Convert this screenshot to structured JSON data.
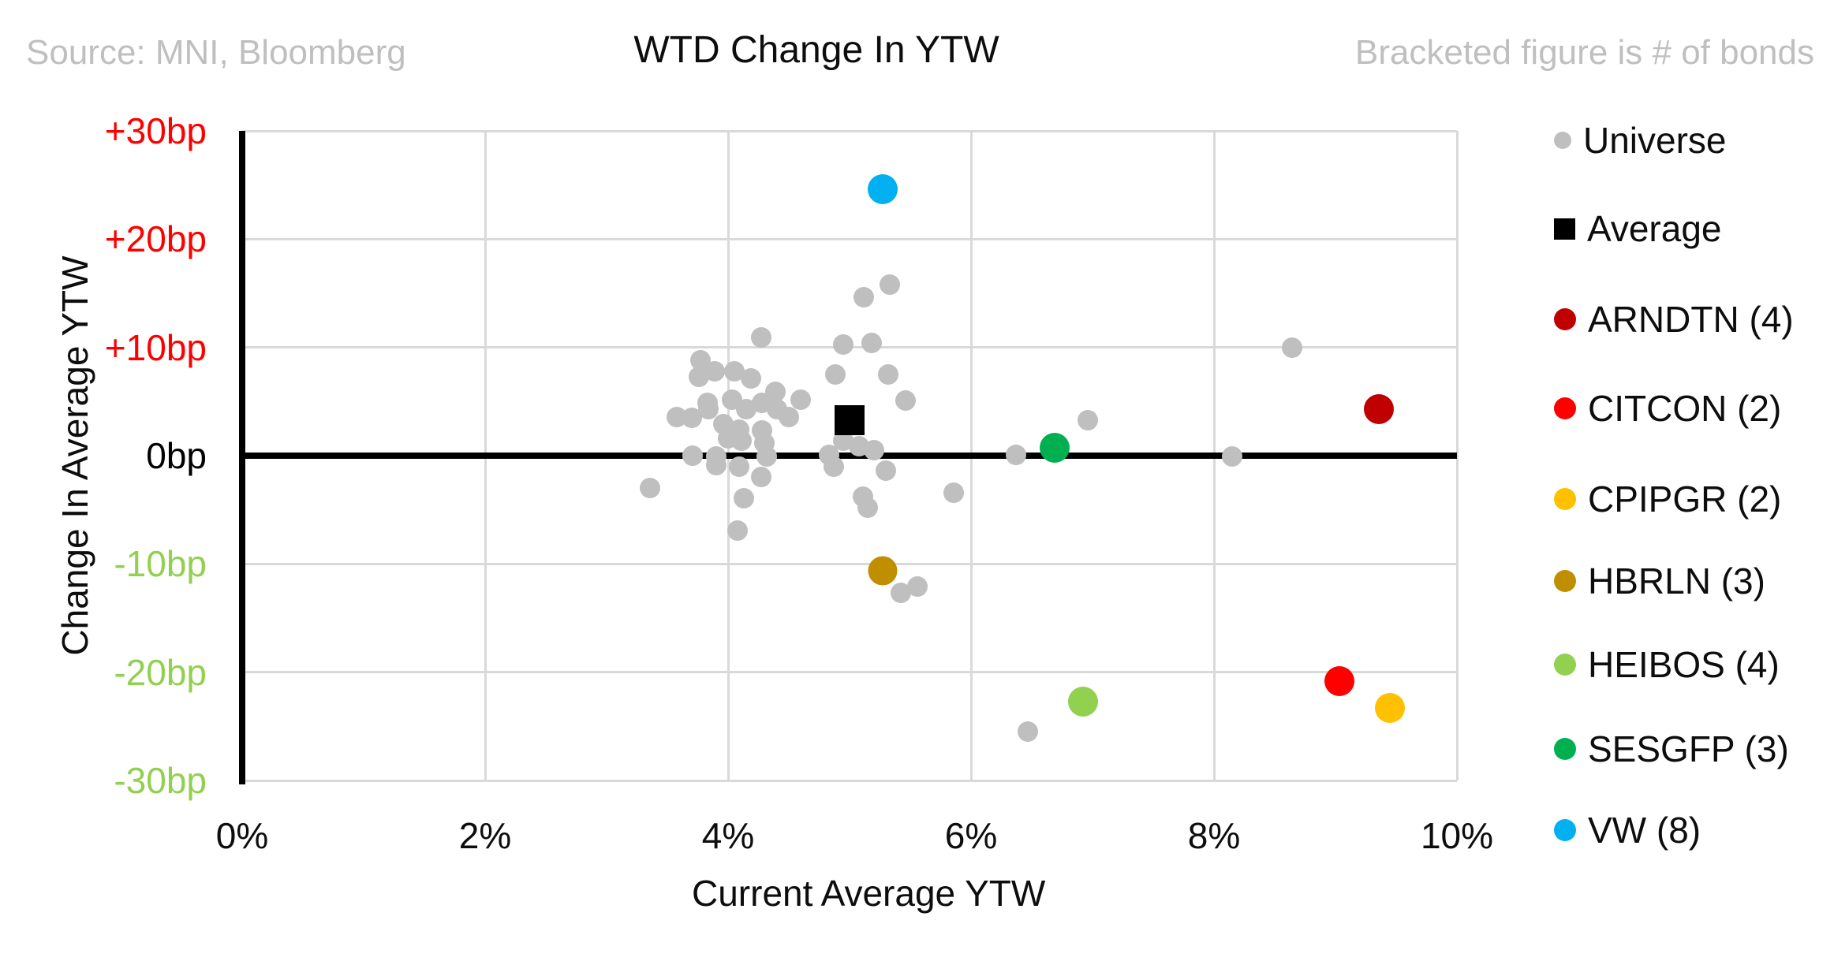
{
  "header": {
    "source": "Source: MNI, Bloomberg",
    "note": "Bracketed figure is # of bonds"
  },
  "chart_data": {
    "type": "scatter",
    "title": "WTD Change In YTW",
    "xlabel": "Current Average YTW",
    "ylabel": "Change In Average YTW",
    "xlim": [
      0,
      10
    ],
    "ylim": [
      -30,
      30
    ],
    "grid": true,
    "legend_position": "right",
    "x_ticks": [
      {
        "label": "0%",
        "value": 0
      },
      {
        "label": "2%",
        "value": 2
      },
      {
        "label": "4%",
        "value": 4
      },
      {
        "label": "6%",
        "value": 6
      },
      {
        "label": "8%",
        "value": 8
      },
      {
        "label": "10%",
        "value": 10
      }
    ],
    "y_ticks": [
      {
        "label": "+30bp",
        "value": 30,
        "color": "#FF0000"
      },
      {
        "label": "+20bp",
        "value": 20,
        "color": "#FF0000"
      },
      {
        "label": "+10bp",
        "value": 10,
        "color": "#FF0000"
      },
      {
        "label": "0bp",
        "value": 0,
        "color": "#000000"
      },
      {
        "label": "-10bp",
        "value": -10,
        "color": "#92D050"
      },
      {
        "label": "-20bp",
        "value": -20,
        "color": "#92D050"
      },
      {
        "label": "-30bp",
        "value": -30,
        "color": "#92D050"
      }
    ],
    "series": [
      {
        "name": "Universe",
        "count": null,
        "marker": "circle",
        "color": "#BFBFBF",
        "point_size": 26,
        "legend_size": 22,
        "points": [
          [
            3.36,
            -3.0
          ],
          [
            3.58,
            3.6
          ],
          [
            3.7,
            3.5
          ],
          [
            3.71,
            0.0
          ],
          [
            3.76,
            7.3
          ],
          [
            3.77,
            8.8
          ],
          [
            3.83,
            4.9
          ],
          [
            3.84,
            4.3
          ],
          [
            3.89,
            7.8
          ],
          [
            3.9,
            -0.1
          ],
          [
            3.9,
            -0.9
          ],
          [
            3.96,
            2.9
          ],
          [
            4.0,
            1.6
          ],
          [
            4.03,
            5.2
          ],
          [
            4.05,
            7.8
          ],
          [
            4.08,
            -6.9
          ],
          [
            4.09,
            2.4
          ],
          [
            4.09,
            -1.0
          ],
          [
            4.11,
            1.4
          ],
          [
            4.13,
            -3.9
          ],
          [
            4.15,
            4.3
          ],
          [
            4.19,
            7.1
          ],
          [
            4.27,
            10.9
          ],
          [
            4.27,
            -2.0
          ],
          [
            4.28,
            4.9
          ],
          [
            4.28,
            2.3
          ],
          [
            4.3,
            1.2
          ],
          [
            4.32,
            -0.1
          ],
          [
            4.39,
            5.9
          ],
          [
            4.4,
            4.3
          ],
          [
            4.5,
            3.6
          ],
          [
            4.6,
            5.2
          ],
          [
            4.83,
            0.1
          ],
          [
            4.87,
            -1.0
          ],
          [
            4.88,
            7.5
          ],
          [
            4.95,
            10.3
          ],
          [
            4.95,
            1.4
          ],
          [
            5.08,
            0.9
          ],
          [
            5.11,
            -3.8
          ],
          [
            5.12,
            14.6
          ],
          [
            5.15,
            -4.8
          ],
          [
            5.2,
            0.5
          ],
          [
            5.18,
            10.4
          ],
          [
            5.3,
            -1.4
          ],
          [
            5.32,
            7.5
          ],
          [
            5.33,
            15.8
          ],
          [
            5.42,
            -12.7
          ],
          [
            5.46,
            5.1
          ],
          [
            5.56,
            -12.1
          ],
          [
            5.86,
            -3.4
          ],
          [
            6.37,
            0.1
          ],
          [
            6.47,
            -25.5
          ],
          [
            6.96,
            3.3
          ],
          [
            8.15,
            -0.1
          ],
          [
            8.64,
            10.0
          ]
        ]
      },
      {
        "name": "Average",
        "count": null,
        "marker": "square",
        "color": "#000000",
        "point_size": 38,
        "legend_size": 27,
        "points": [
          [
            5.0,
            3.3
          ]
        ]
      },
      {
        "name": "ARNDTN",
        "count": 4,
        "marker": "circle",
        "color": "#C00000",
        "point_size": 38,
        "legend_size": 28,
        "points": [
          [
            9.36,
            4.3
          ]
        ]
      },
      {
        "name": "CITCON",
        "count": 2,
        "marker": "circle",
        "color": "#FF0000",
        "point_size": 38,
        "legend_size": 28,
        "points": [
          [
            9.03,
            -20.8
          ]
        ]
      },
      {
        "name": "CPIPGR",
        "count": 2,
        "marker": "circle",
        "color": "#FFC000",
        "point_size": 38,
        "legend_size": 28,
        "points": [
          [
            9.45,
            -23.3
          ]
        ]
      },
      {
        "name": "HBRLN",
        "count": 3,
        "marker": "circle",
        "color": "#BF8F00",
        "point_size": 37,
        "legend_size": 28,
        "points": [
          [
            5.27,
            -10.6
          ]
        ]
      },
      {
        "name": "HEIBOS",
        "count": 4,
        "marker": "circle",
        "color": "#92D050",
        "point_size": 38,
        "legend_size": 28,
        "points": [
          [
            6.92,
            -22.7
          ]
        ]
      },
      {
        "name": "SESGFP",
        "count": 3,
        "marker": "circle",
        "color": "#00B050",
        "point_size": 38,
        "legend_size": 28,
        "points": [
          [
            6.69,
            0.7
          ]
        ]
      },
      {
        "name": "VW",
        "count": 8,
        "marker": "circle",
        "color": "#00B0F0",
        "point_size": 38,
        "legend_size": 28,
        "points": [
          [
            5.27,
            24.6
          ]
        ]
      }
    ]
  }
}
